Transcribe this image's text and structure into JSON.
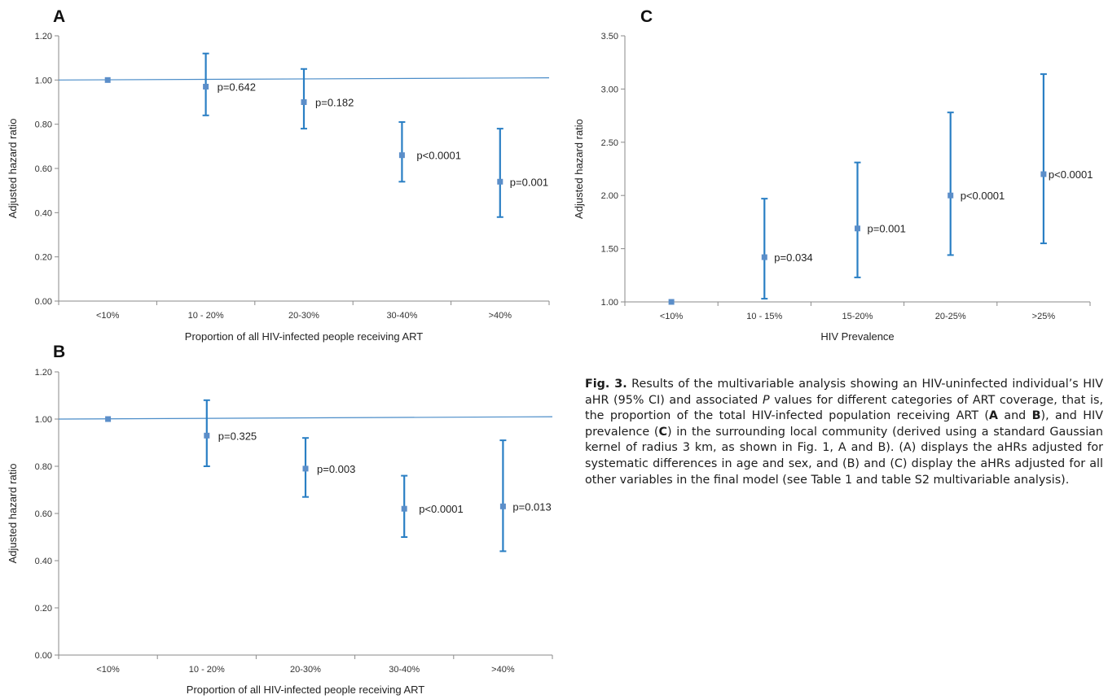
{
  "chart_data": [
    {
      "panel": "A",
      "type": "scatter",
      "error_bars": true,
      "ylabel": "Adjusted hazard ratio",
      "xlabel": "Proportion of all HIV-infected people receiving ART",
      "categories": [
        "<10%",
        "10 - 20%",
        "20-30%",
        "30-40%",
        ">40%"
      ],
      "ylim": [
        0,
        1.2
      ],
      "yticks": [
        "0.00",
        "0.20",
        "0.40",
        "0.60",
        "0.80",
        "1.00",
        "1.20"
      ],
      "ytick_values": [
        0,
        0.2,
        0.4,
        0.6,
        0.8,
        1.0,
        1.2
      ],
      "reference_line": [
        1.0,
        1.01
      ],
      "points": [
        {
          "y": 1.0,
          "lo": 1.0,
          "hi": 1.0,
          "p": ""
        },
        {
          "y": 0.97,
          "lo": 0.84,
          "hi": 1.12,
          "p": "p=0.642"
        },
        {
          "y": 0.9,
          "lo": 0.78,
          "hi": 1.05,
          "p": "p=0.182"
        },
        {
          "y": 0.66,
          "lo": 0.54,
          "hi": 0.81,
          "p": "p<0.0001"
        },
        {
          "y": 0.54,
          "lo": 0.38,
          "hi": 0.78,
          "p": "p=0.001"
        }
      ]
    },
    {
      "panel": "B",
      "type": "scatter",
      "error_bars": true,
      "ylabel": "Adjusted hazard ratio",
      "xlabel": "Proportion of all HIV-infected people receiving ART",
      "categories": [
        "<10%",
        "10 - 20%",
        "20-30%",
        "30-40%",
        ">40%"
      ],
      "ylim": [
        0,
        1.2
      ],
      "yticks": [
        "0.00",
        "0.20",
        "0.40",
        "0.60",
        "0.80",
        "1.00",
        "1.20"
      ],
      "ytick_values": [
        0,
        0.2,
        0.4,
        0.6,
        0.8,
        1.0,
        1.2
      ],
      "reference_line": [
        1.0,
        1.01
      ],
      "points": [
        {
          "y": 1.0,
          "lo": 1.0,
          "hi": 1.0,
          "p": ""
        },
        {
          "y": 0.93,
          "lo": 0.8,
          "hi": 1.08,
          "p": "p=0.325"
        },
        {
          "y": 0.79,
          "lo": 0.67,
          "hi": 0.92,
          "p": "p=0.003"
        },
        {
          "y": 0.62,
          "lo": 0.5,
          "hi": 0.76,
          "p": "p<0.0001"
        },
        {
          "y": 0.63,
          "lo": 0.44,
          "hi": 0.91,
          "p": "p=0.013"
        }
      ]
    },
    {
      "panel": "C",
      "type": "scatter",
      "error_bars": true,
      "ylabel": "Adjusted hazard ratio",
      "xlabel": "HIV Prevalence",
      "categories": [
        "<10%",
        "10 - 15%",
        "15-20%",
        "20-25%",
        ">25%"
      ],
      "ylim": [
        1,
        3.5
      ],
      "yticks": [
        "1.00",
        "1.50",
        "2.00",
        "2.50",
        "3.00",
        "3.50"
      ],
      "ytick_values": [
        1.0,
        1.5,
        2.0,
        2.5,
        3.0,
        3.5
      ],
      "reference_line": null,
      "points": [
        {
          "y": 1.0,
          "lo": 1.0,
          "hi": 1.0,
          "p": ""
        },
        {
          "y": 1.42,
          "lo": 1.03,
          "hi": 1.97,
          "p": "p=0.034"
        },
        {
          "y": 1.69,
          "lo": 1.23,
          "hi": 2.31,
          "p": "p=0.001"
        },
        {
          "y": 2.0,
          "lo": 1.44,
          "hi": 2.78,
          "p": "p<0.0001"
        },
        {
          "y": 2.2,
          "lo": 1.55,
          "hi": 3.14,
          "p": "p<0.0001"
        }
      ]
    }
  ],
  "colors": {
    "marker": "#5b8ec9",
    "bar": "#2a7fc4",
    "axis": "#8a8a8a",
    "reference": "#4a8cc8"
  },
  "caption": {
    "fig_label": "Fig. 3.",
    "t1": " Results of the multivariable analysis showing an HIV-uninfected individual’s HIV aHR (95% CI) and associated ",
    "p_italic": "P",
    "t2": " values for different categories of ART coverage, that is, the proportion of the total HIV-infected population receiving ART (",
    "A": "A",
    "and": " and ",
    "B": "B",
    "t3": "), and HIV prevalence (",
    "C": "C",
    "t4": ") in the surrounding local community (derived using a standard Gaussian kernel of radius 3 km, as shown in Fig. 1, A and B). (A) displays the aHRs adjusted for systematic differences in age and sex, and (B) and (C) display the aHRs adjusted for all other variables in the final model (see Table 1 and table S2 multivariable analysis)."
  }
}
